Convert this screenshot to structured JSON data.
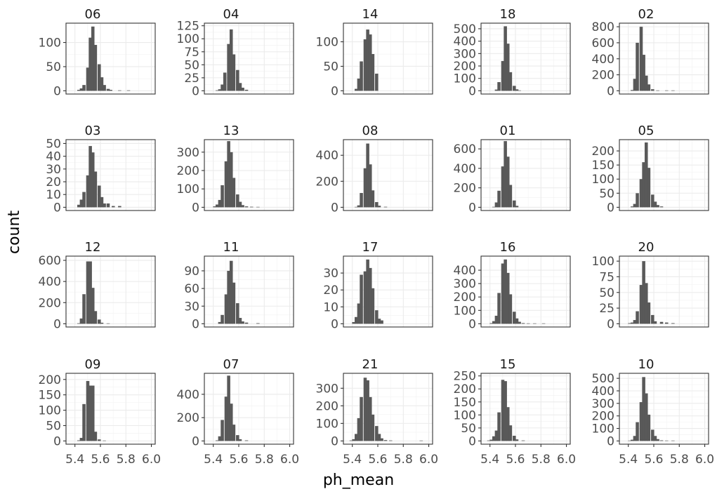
{
  "chart_data": {
    "type": "bar",
    "xlabel": "ph_mean",
    "ylabel": "count",
    "x_ticks": [
      "5.4",
      "5.6",
      "5.8",
      "6.0"
    ],
    "x_range": [
      5.33,
      6.03
    ],
    "bin_width": 0.0235,
    "facets": [
      {
        "label": "06",
        "y_ticks": [
          0,
          50,
          100
        ],
        "y_max": 140,
        "bins": [
          [
            5.43,
            2
          ],
          [
            5.45,
            5
          ],
          [
            5.47,
            12
          ],
          [
            5.5,
            48
          ],
          [
            5.52,
            110
          ],
          [
            5.54,
            133
          ],
          [
            5.56,
            95
          ],
          [
            5.59,
            55
          ],
          [
            5.61,
            28
          ],
          [
            5.63,
            12
          ],
          [
            5.66,
            4
          ],
          [
            5.68,
            2
          ],
          [
            5.75,
            1
          ],
          [
            5.82,
            1
          ]
        ]
      },
      {
        "label": "04",
        "y_ticks": [
          0,
          25,
          50,
          75,
          100,
          125
        ],
        "y_max": 130,
        "bins": [
          [
            5.43,
            1
          ],
          [
            5.45,
            3
          ],
          [
            5.47,
            12
          ],
          [
            5.49,
            35
          ],
          [
            5.52,
            90
          ],
          [
            5.54,
            118
          ],
          [
            5.56,
            70
          ],
          [
            5.59,
            40
          ],
          [
            5.61,
            15
          ],
          [
            5.63,
            6
          ],
          [
            5.66,
            2
          ]
        ]
      },
      {
        "label": "14",
        "y_ticks": [
          0,
          50,
          100
        ],
        "y_max": 138,
        "bins": [
          [
            5.43,
            4
          ],
          [
            5.45,
            25
          ],
          [
            5.47,
            60
          ],
          [
            5.5,
            105
          ],
          [
            5.52,
            125
          ],
          [
            5.54,
            115
          ],
          [
            5.56,
            75
          ],
          [
            5.59,
            35
          ]
        ]
      },
      {
        "label": "18",
        "y_ticks": [
          0,
          100,
          200,
          300,
          400,
          500
        ],
        "y_max": 545,
        "bins": [
          [
            5.45,
            10
          ],
          [
            5.47,
            70
          ],
          [
            5.5,
            240
          ],
          [
            5.52,
            520
          ],
          [
            5.54,
            380
          ],
          [
            5.56,
            150
          ],
          [
            5.59,
            40
          ],
          [
            5.61,
            12
          ],
          [
            5.63,
            3
          ]
        ]
      },
      {
        "label": "02",
        "y_ticks": [
          0,
          200,
          400,
          600,
          800
        ],
        "y_max": 845,
        "bins": [
          [
            5.43,
            10
          ],
          [
            5.45,
            150
          ],
          [
            5.47,
            600
          ],
          [
            5.5,
            800
          ],
          [
            5.52,
            450
          ],
          [
            5.54,
            190
          ],
          [
            5.56,
            80
          ],
          [
            5.59,
            20
          ],
          [
            5.63,
            5
          ],
          [
            5.7,
            2
          ],
          [
            5.75,
            2
          ]
        ]
      },
      {
        "label": "03",
        "y_ticks": [
          0,
          10,
          20,
          30,
          40,
          50
        ],
        "y_max": 53,
        "bins": [
          [
            5.43,
            2
          ],
          [
            5.45,
            6
          ],
          [
            5.47,
            12
          ],
          [
            5.5,
            25
          ],
          [
            5.52,
            48
          ],
          [
            5.54,
            43
          ],
          [
            5.56,
            28
          ],
          [
            5.59,
            17
          ],
          [
            5.61,
            8
          ],
          [
            5.63,
            3
          ],
          [
            5.66,
            3
          ],
          [
            5.7,
            1
          ],
          [
            5.75,
            1
          ]
        ]
      },
      {
        "label": "13",
        "y_ticks": [
          0,
          100,
          200,
          300
        ],
        "y_max": 368,
        "bins": [
          [
            5.41,
            5
          ],
          [
            5.43,
            15
          ],
          [
            5.45,
            40
          ],
          [
            5.47,
            120
          ],
          [
            5.5,
            250
          ],
          [
            5.52,
            360
          ],
          [
            5.54,
            300
          ],
          [
            5.56,
            160
          ],
          [
            5.59,
            70
          ],
          [
            5.61,
            30
          ],
          [
            5.63,
            12
          ],
          [
            5.66,
            5
          ],
          [
            5.7,
            3
          ],
          [
            5.75,
            2
          ]
        ]
      },
      {
        "label": "08",
        "y_ticks": [
          0,
          200,
          400
        ],
        "y_max": 520,
        "bins": [
          [
            5.43,
            3
          ],
          [
            5.45,
            15
          ],
          [
            5.47,
            110
          ],
          [
            5.5,
            300
          ],
          [
            5.52,
            490
          ],
          [
            5.54,
            330
          ],
          [
            5.56,
            130
          ],
          [
            5.59,
            40
          ],
          [
            5.61,
            12
          ],
          [
            5.66,
            4
          ]
        ]
      },
      {
        "label": "01",
        "y_ticks": [
          0,
          200,
          400,
          600
        ],
        "y_max": 695,
        "bins": [
          [
            5.43,
            5
          ],
          [
            5.45,
            50
          ],
          [
            5.47,
            170
          ],
          [
            5.5,
            420
          ],
          [
            5.52,
            680
          ],
          [
            5.54,
            520
          ],
          [
            5.56,
            230
          ],
          [
            5.59,
            70
          ],
          [
            5.61,
            15
          ]
        ]
      },
      {
        "label": "05",
        "y_ticks": [
          0,
          50,
          100,
          150,
          200
        ],
        "y_max": 240,
        "bins": [
          [
            5.43,
            3
          ],
          [
            5.45,
            12
          ],
          [
            5.47,
            50
          ],
          [
            5.5,
            100
          ],
          [
            5.52,
            160
          ],
          [
            5.54,
            230
          ],
          [
            5.56,
            140
          ],
          [
            5.59,
            45
          ],
          [
            5.61,
            20
          ],
          [
            5.63,
            8
          ],
          [
            5.66,
            3
          ]
        ]
      },
      {
        "label": "12",
        "y_ticks": [
          0,
          200,
          400,
          600
        ],
        "y_max": 640,
        "bins": [
          [
            5.43,
            5
          ],
          [
            5.45,
            50
          ],
          [
            5.47,
            280
          ],
          [
            5.5,
            590
          ],
          [
            5.52,
            590
          ],
          [
            5.54,
            340
          ],
          [
            5.56,
            120
          ],
          [
            5.59,
            40
          ],
          [
            5.61,
            10
          ],
          [
            5.66,
            4
          ]
        ]
      },
      {
        "label": "11",
        "y_ticks": [
          0,
          30,
          60,
          90
        ],
        "y_max": 115,
        "bins": [
          [
            5.45,
            3
          ],
          [
            5.47,
            15
          ],
          [
            5.5,
            50
          ],
          [
            5.52,
            90
          ],
          [
            5.54,
            107
          ],
          [
            5.56,
            70
          ],
          [
            5.59,
            35
          ],
          [
            5.61,
            10
          ],
          [
            5.63,
            4
          ],
          [
            5.66,
            2
          ],
          [
            5.75,
            1
          ]
        ]
      },
      {
        "label": "17",
        "y_ticks": [
          0,
          10,
          20,
          30
        ],
        "y_max": 40,
        "bins": [
          [
            5.41,
            1
          ],
          [
            5.43,
            4
          ],
          [
            5.45,
            12
          ],
          [
            5.47,
            29
          ],
          [
            5.5,
            31
          ],
          [
            5.52,
            38
          ],
          [
            5.54,
            33
          ],
          [
            5.56,
            21
          ],
          [
            5.59,
            8
          ],
          [
            5.61,
            3
          ],
          [
            5.63,
            2
          ]
        ]
      },
      {
        "label": "16",
        "y_ticks": [
          0,
          100,
          200,
          300,
          400
        ],
        "y_max": 505,
        "bins": [
          [
            5.41,
            5
          ],
          [
            5.43,
            20
          ],
          [
            5.45,
            60
          ],
          [
            5.47,
            230
          ],
          [
            5.5,
            450
          ],
          [
            5.52,
            480
          ],
          [
            5.54,
            380
          ],
          [
            5.56,
            220
          ],
          [
            5.59,
            90
          ],
          [
            5.61,
            40
          ],
          [
            5.63,
            15
          ],
          [
            5.66,
            5
          ],
          [
            5.7,
            3
          ],
          [
            5.75,
            2
          ],
          [
            5.82,
            1
          ]
        ]
      },
      {
        "label": "20",
        "y_ticks": [
          0,
          25,
          50,
          75,
          100
        ],
        "y_max": 108,
        "bins": [
          [
            5.41,
            1
          ],
          [
            5.43,
            2
          ],
          [
            5.45,
            6
          ],
          [
            5.47,
            20
          ],
          [
            5.5,
            62
          ],
          [
            5.52,
            100
          ],
          [
            5.54,
            65
          ],
          [
            5.56,
            34
          ],
          [
            5.59,
            14
          ],
          [
            5.61,
            4
          ],
          [
            5.66,
            3
          ],
          [
            5.7,
            2
          ],
          [
            5.75,
            1
          ]
        ]
      },
      {
        "label": "09",
        "y_ticks": [
          0,
          50,
          100,
          150,
          200
        ],
        "y_max": 220,
        "bins": [
          [
            5.43,
            2
          ],
          [
            5.45,
            10
          ],
          [
            5.47,
            120
          ],
          [
            5.5,
            195
          ],
          [
            5.52,
            180
          ],
          [
            5.54,
            180
          ],
          [
            5.56,
            30
          ],
          [
            5.59,
            5
          ],
          [
            5.63,
            1
          ]
        ]
      },
      {
        "label": "07",
        "y_ticks": [
          0,
          200,
          400
        ],
        "y_max": 580,
        "bins": [
          [
            5.43,
            5
          ],
          [
            5.45,
            40
          ],
          [
            5.47,
            180
          ],
          [
            5.5,
            380
          ],
          [
            5.52,
            560
          ],
          [
            5.54,
            320
          ],
          [
            5.56,
            140
          ],
          [
            5.59,
            50
          ],
          [
            5.61,
            15
          ],
          [
            5.66,
            5
          ]
        ]
      },
      {
        "label": "21",
        "y_ticks": [
          0,
          100,
          200,
          300
        ],
        "y_max": 385,
        "bins": [
          [
            5.39,
            3
          ],
          [
            5.41,
            10
          ],
          [
            5.43,
            40
          ],
          [
            5.45,
            130
          ],
          [
            5.47,
            250
          ],
          [
            5.5,
            360
          ],
          [
            5.52,
            345
          ],
          [
            5.54,
            250
          ],
          [
            5.56,
            150
          ],
          [
            5.59,
            85
          ],
          [
            5.61,
            40
          ],
          [
            5.63,
            15
          ],
          [
            5.66,
            5
          ],
          [
            5.7,
            3
          ],
          [
            5.94,
            2
          ]
        ]
      },
      {
        "label": "15",
        "y_ticks": [
          0,
          50,
          100,
          150,
          200,
          250
        ],
        "y_max": 260,
        "bins": [
          [
            5.39,
            2
          ],
          [
            5.41,
            5
          ],
          [
            5.43,
            18
          ],
          [
            5.45,
            40
          ],
          [
            5.47,
            110
          ],
          [
            5.5,
            235
          ],
          [
            5.52,
            230
          ],
          [
            5.54,
            130
          ],
          [
            5.56,
            60
          ],
          [
            5.59,
            20
          ],
          [
            5.61,
            6
          ],
          [
            5.66,
            2
          ]
        ]
      },
      {
        "label": "10",
        "y_ticks": [
          0,
          100,
          200,
          300,
          400,
          500
        ],
        "y_max": 540,
        "bins": [
          [
            5.41,
            3
          ],
          [
            5.43,
            10
          ],
          [
            5.45,
            40
          ],
          [
            5.47,
            150
          ],
          [
            5.5,
            310
          ],
          [
            5.52,
            510
          ],
          [
            5.54,
            380
          ],
          [
            5.56,
            210
          ],
          [
            5.59,
            90
          ],
          [
            5.61,
            40
          ],
          [
            5.63,
            15
          ],
          [
            5.66,
            5
          ],
          [
            5.7,
            3
          ],
          [
            5.75,
            2
          ]
        ]
      }
    ]
  }
}
